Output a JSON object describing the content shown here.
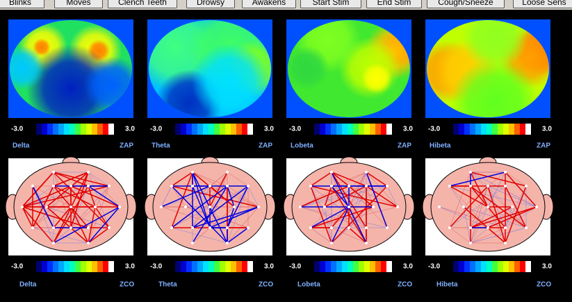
{
  "toolbar": {
    "buttons": [
      "Blinks",
      "Moves",
      "Clench Teeth",
      "Drowsy",
      "Awakens",
      "Start Stim",
      "End Stim",
      "Cough/Sneeze",
      "Loose Sens"
    ]
  },
  "maps": [
    {
      "band": "Delta",
      "measure": "ZAP",
      "min": "-3.0",
      "max": "3.0"
    },
    {
      "band": "Theta",
      "measure": "ZAP",
      "min": "-3.0",
      "max": "3.0"
    },
    {
      "band": "Lobeta",
      "measure": "ZAP",
      "min": "-3.0",
      "max": "3.0"
    },
    {
      "band": "Hibeta",
      "measure": "ZAP",
      "min": "-3.0",
      "max": "3.0"
    }
  ],
  "connectivity": [
    {
      "band": "Delta",
      "measure": "ZCO",
      "min": "-3.0",
      "max": "3.0"
    },
    {
      "band": "Theta",
      "measure": "ZCO",
      "min": "-3.0",
      "max": "3.0"
    },
    {
      "band": "Lobeta",
      "measure": "ZCO",
      "min": "-3.0",
      "max": "3.0"
    },
    {
      "band": "Hibeta",
      "measure": "ZCO",
      "min": "-3.0",
      "max": "3.0"
    }
  ]
}
